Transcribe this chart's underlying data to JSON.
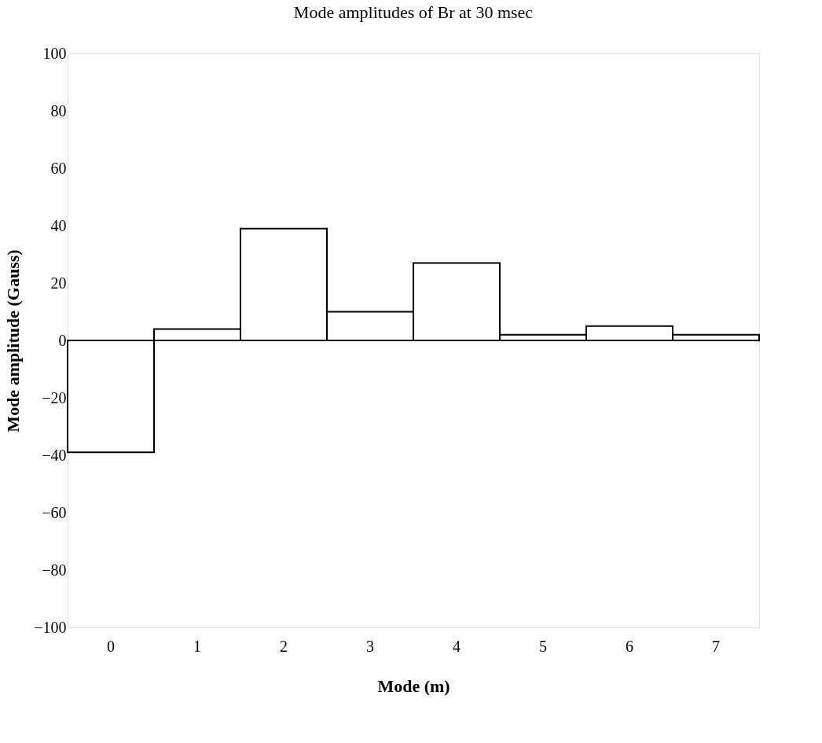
{
  "chart_data": {
    "type": "bar",
    "title": "Mode amplitudes of Br at 30 msec",
    "xlabel": "Mode (m)",
    "ylabel": "Mode amplitude (Gauss)",
    "categories": [
      "0",
      "1",
      "2",
      "3",
      "4",
      "5",
      "6",
      "7"
    ],
    "values": [
      -39,
      4,
      39,
      10,
      27,
      2,
      5,
      2
    ],
    "color": "#000000",
    "ylim": [
      -100,
      100
    ],
    "yticks": [
      -100,
      -80,
      -60,
      -40,
      -20,
      0,
      20,
      40,
      60,
      80,
      100
    ],
    "grid": false
  }
}
